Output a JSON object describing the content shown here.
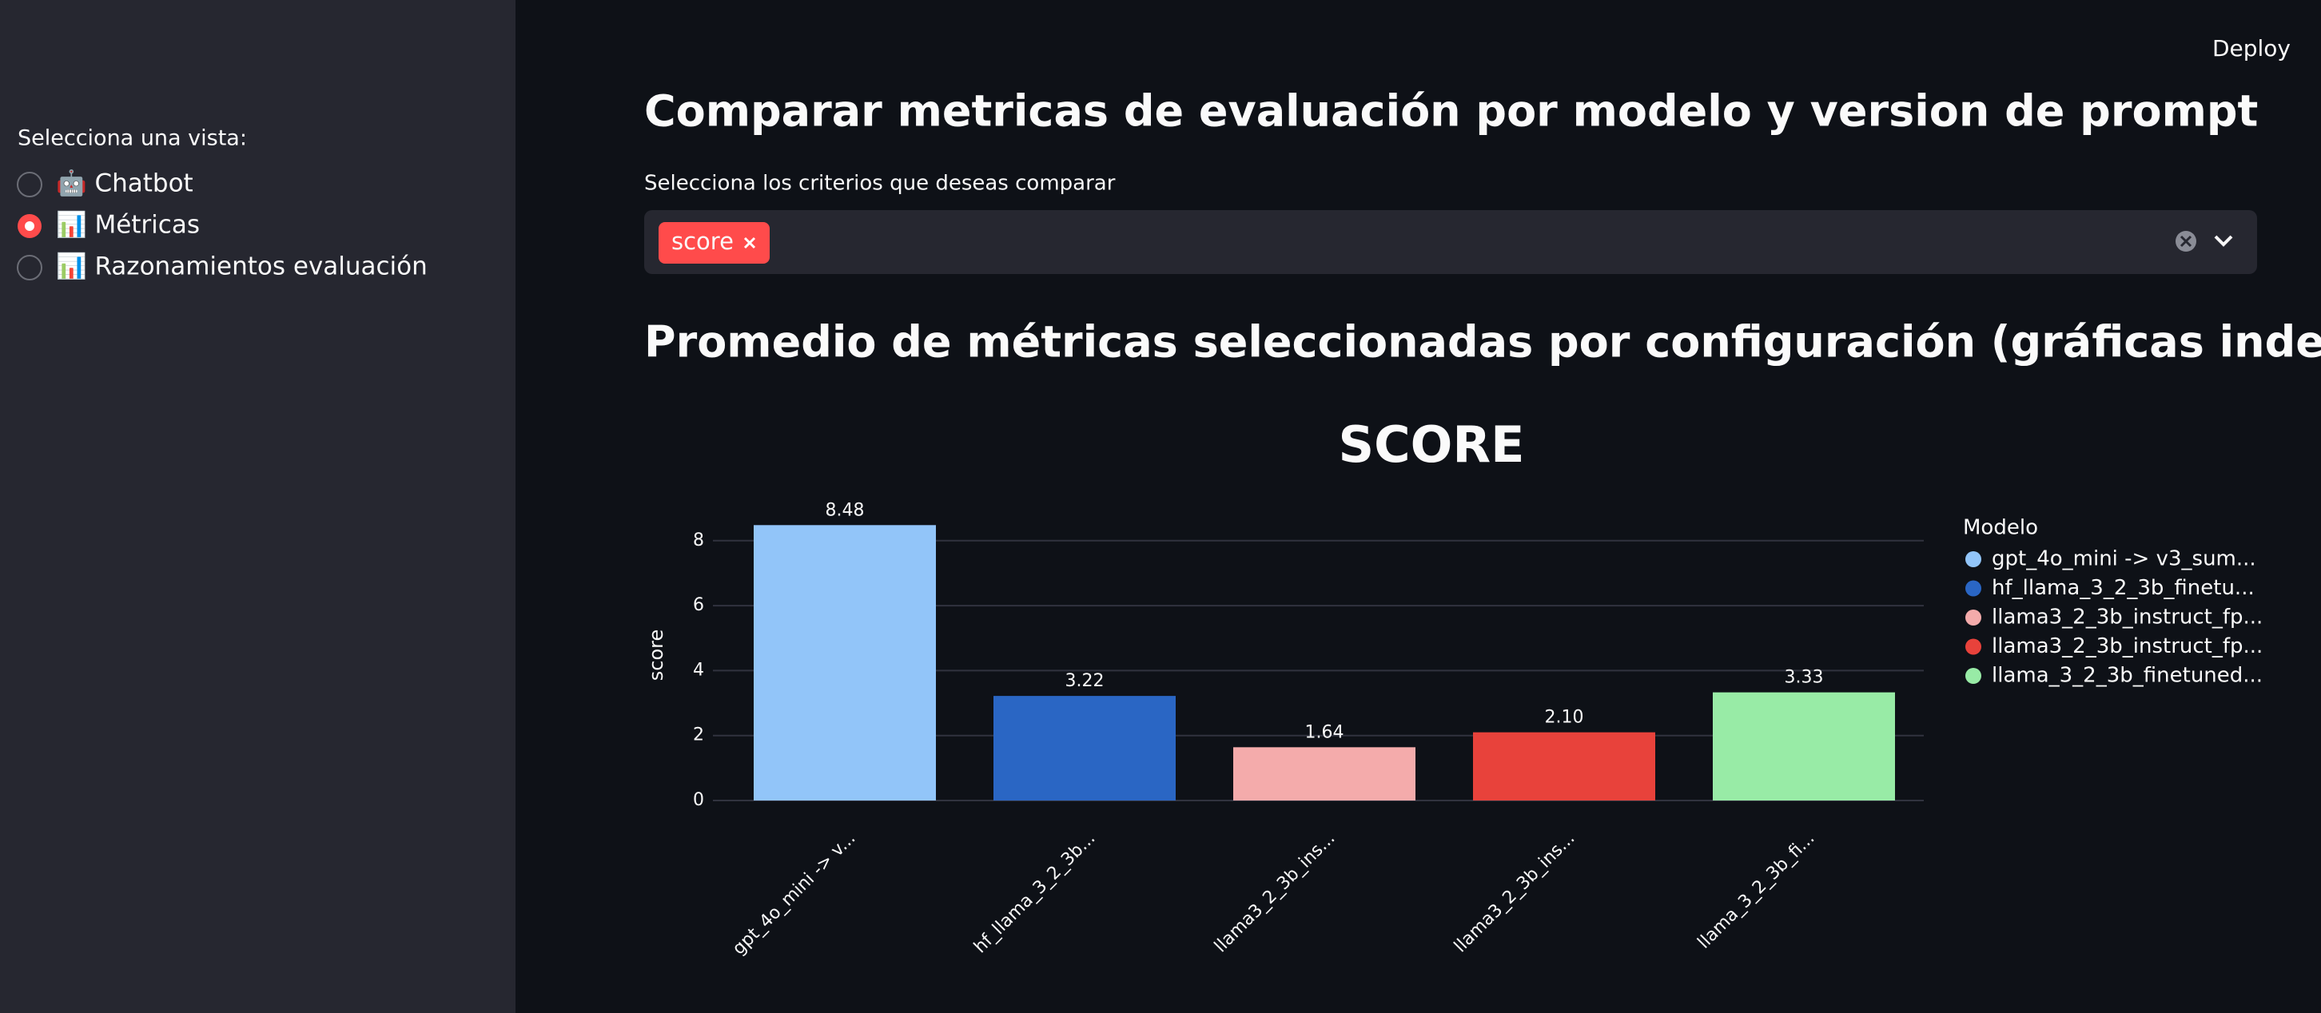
{
  "deploy": "Deploy",
  "sidebar": {
    "label": "Selecciona una vista:",
    "options": [
      "🤖 Chatbot",
      "📊 Métricas",
      "📊 Razonamientos evaluación"
    ],
    "selected": 1
  },
  "title": "Comparar metricas de evaluación por modelo y version de prompt",
  "multiselect": {
    "label": "Selecciona los criterios que deseas comparar",
    "chips": [
      "score"
    ]
  },
  "section_title": "Promedio de métricas seleccionadas por configuración (gráficas independientes)",
  "chart_data": {
    "type": "bar",
    "title": "SCORE",
    "y_label": "score",
    "categories": [
      "gpt_4o_mini -> v...",
      "hf_llama_3_2_3b...",
      "llama3_2_3b_ins...",
      "llama3_2_3b_ins...",
      "llama_3_2_3b_fi..."
    ],
    "values": [
      8.48,
      3.22,
      1.64,
      2.1,
      3.33
    ],
    "value_labels": [
      "8.48",
      "3.22",
      "1.64",
      "2.10",
      "3.33"
    ],
    "colors": [
      "#92c5f9",
      "#2a66c4",
      "#f4abab",
      "#e8423b",
      "#98eba6"
    ],
    "legend_title": "Modelo",
    "legend_labels": [
      "gpt_4o_mini -> v3_sum...",
      "hf_llama_3_2_3b_finetu...",
      "llama3_2_3b_instruct_fp...",
      "llama3_2_3b_instruct_fp...",
      "llama_3_2_3b_finetuned..."
    ],
    "ylim": [
      0,
      8.93
    ],
    "yticks": [
      0,
      2,
      4,
      6,
      8
    ],
    "grid": true
  }
}
